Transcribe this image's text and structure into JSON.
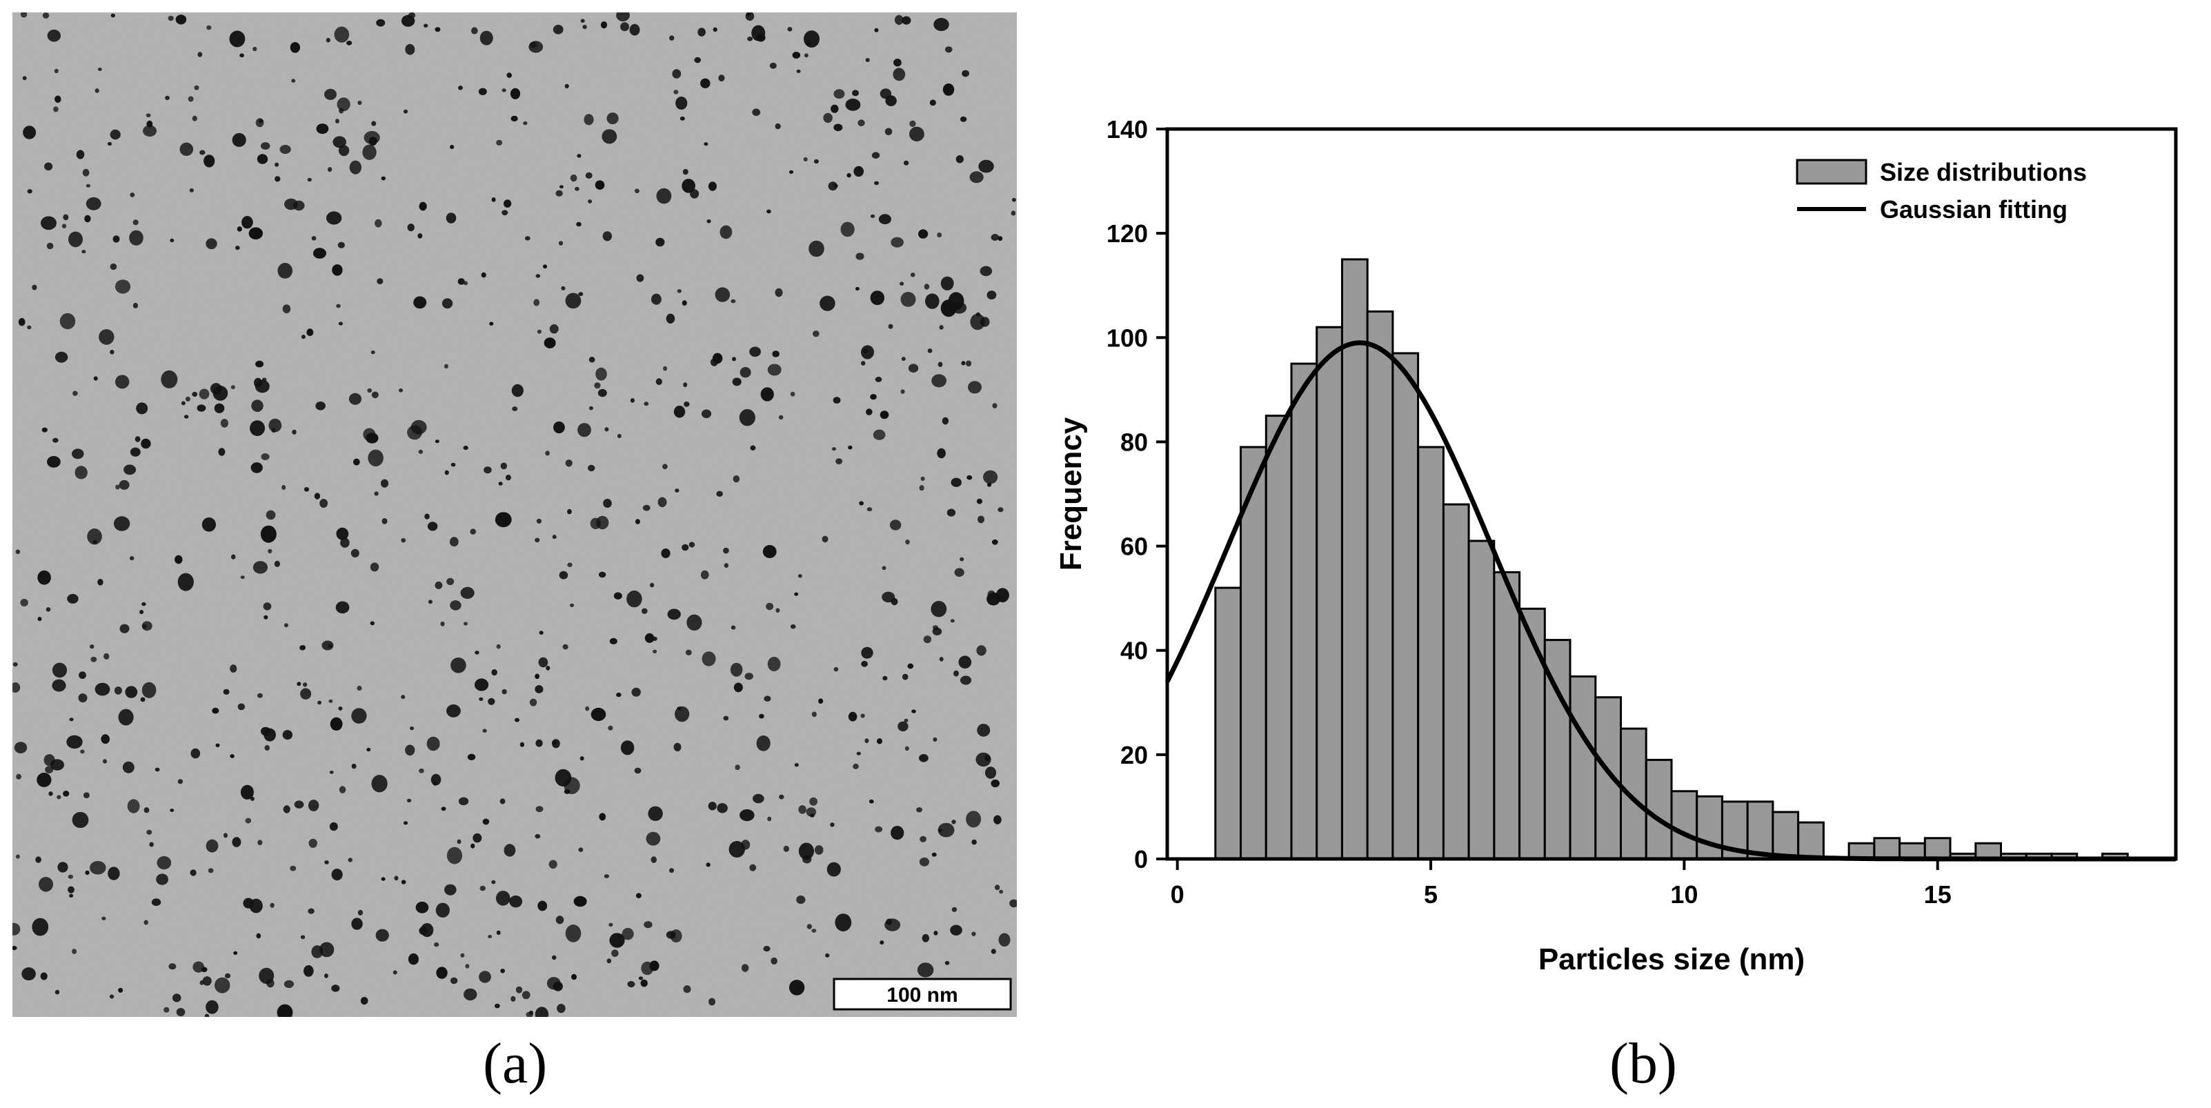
{
  "panel_a": {
    "label": "(a)",
    "scale_bar_label": "100 nm",
    "image_tone": "#b9b9b9",
    "particle_tone": "#111111"
  },
  "panel_b": {
    "label": "(b)"
  },
  "chart_data": {
    "type": "bar",
    "title": "",
    "xlabel": "Particles size (nm)",
    "ylabel": "Frequency",
    "xlim": [
      -0.2,
      19.7
    ],
    "ylim": [
      0,
      140
    ],
    "xticks": [
      0,
      5,
      10,
      15
    ],
    "yticks": [
      0,
      20,
      40,
      60,
      80,
      100,
      120,
      140
    ],
    "bin_width": 0.5,
    "legend_position": "top-right",
    "grid": false,
    "series": [
      {
        "name": "Size distributions",
        "kind": "histogram",
        "color": "#999999",
        "bins": [
          {
            "x": 1.0,
            "value": 52
          },
          {
            "x": 1.5,
            "value": 79
          },
          {
            "x": 2.0,
            "value": 85
          },
          {
            "x": 2.5,
            "value": 95
          },
          {
            "x": 3.0,
            "value": 102
          },
          {
            "x": 3.5,
            "value": 115
          },
          {
            "x": 4.0,
            "value": 105
          },
          {
            "x": 4.5,
            "value": 97
          },
          {
            "x": 5.0,
            "value": 79
          },
          {
            "x": 5.5,
            "value": 68
          },
          {
            "x": 6.0,
            "value": 61
          },
          {
            "x": 6.5,
            "value": 55
          },
          {
            "x": 7.0,
            "value": 48
          },
          {
            "x": 7.5,
            "value": 42
          },
          {
            "x": 8.0,
            "value": 35
          },
          {
            "x": 8.5,
            "value": 31
          },
          {
            "x": 9.0,
            "value": 25
          },
          {
            "x": 9.5,
            "value": 19
          },
          {
            "x": 10.0,
            "value": 13
          },
          {
            "x": 10.5,
            "value": 12
          },
          {
            "x": 11.0,
            "value": 11
          },
          {
            "x": 11.5,
            "value": 11
          },
          {
            "x": 12.0,
            "value": 9
          },
          {
            "x": 12.5,
            "value": 7
          },
          {
            "x": 13.5,
            "value": 3
          },
          {
            "x": 14.0,
            "value": 4
          },
          {
            "x": 14.5,
            "value": 3
          },
          {
            "x": 15.0,
            "value": 4
          },
          {
            "x": 15.5,
            "value": 1
          },
          {
            "x": 16.0,
            "value": 3
          },
          {
            "x": 16.5,
            "value": 1
          },
          {
            "x": 17.0,
            "value": 1
          },
          {
            "x": 17.5,
            "value": 1
          },
          {
            "x": 18.5,
            "value": 1
          }
        ]
      },
      {
        "name": "Gaussian fitting",
        "kind": "line",
        "color": "#000000",
        "peak": 99,
        "mean": 3.6,
        "sd": 2.6
      }
    ]
  }
}
